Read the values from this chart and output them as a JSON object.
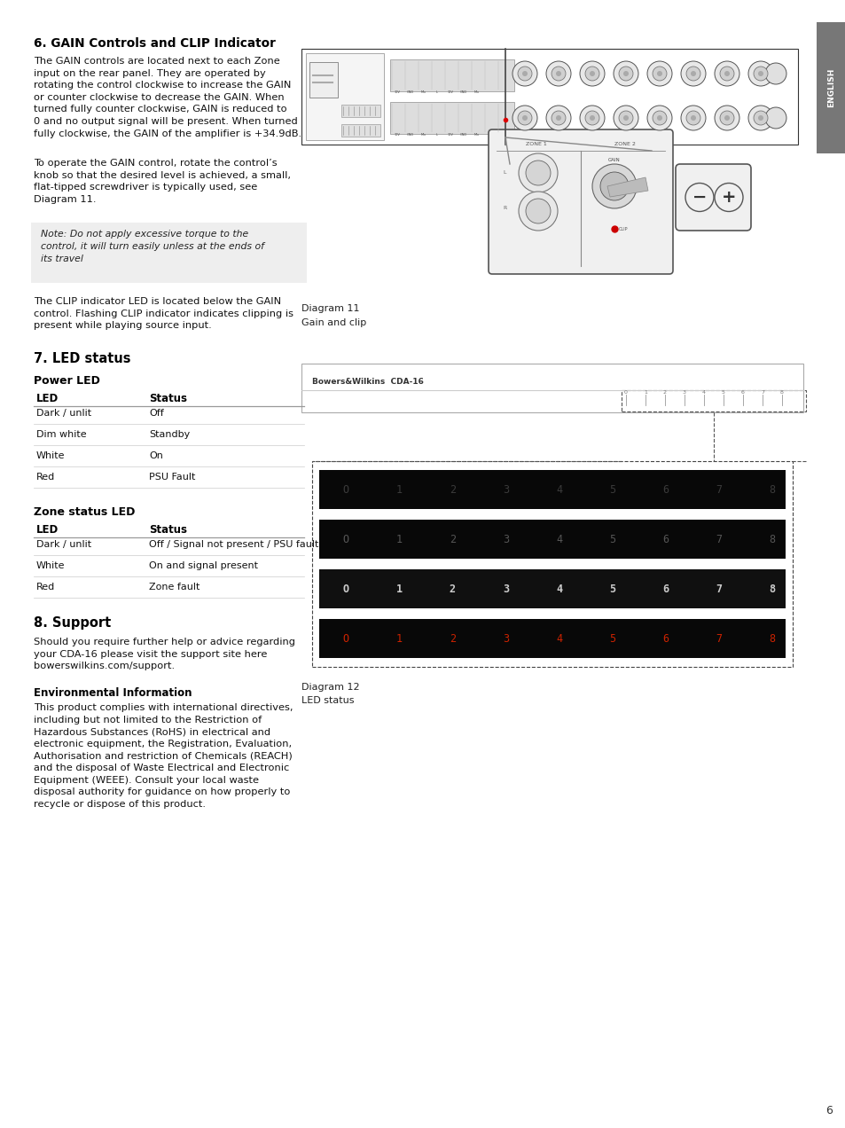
{
  "bg_color": "#ffffff",
  "sidebar_color": "#777777",
  "sidebar_text": "ENGLISH",
  "page_number": "6",
  "section6_title": "6. GAIN Controls and CLIP Indicator",
  "section6_body1": "The GAIN controls are located next to each Zone\ninput on the rear panel. They are operated by\nrotating the control clockwise to increase the GAIN\nor counter clockwise to decrease the GAIN. When\nturned fully counter clockwise, GAIN is reduced to\n0 and no output signal will be present. When turned\nfully clockwise, the GAIN of the amplifier is +34.9dB.",
  "section6_body2": "To operate the GAIN control, rotate the control’s\nknob so that the desired level is achieved, a small,\nflat-tipped screwdriver is typically used, see\nDiagram 11.",
  "note_text": "Note: Do not apply excessive torque to the\ncontrol, it will turn easily unless at the ends of\nits travel",
  "note_bg": "#eeeeee",
  "section6_body3": "The CLIP indicator LED is located below the GAIN\ncontrol. Flashing CLIP indicator indicates clipping is\npresent while playing source input.",
  "diagram11_label": "Diagram 11",
  "diagram11_caption": "Gain and clip",
  "section7_title": "7. LED status",
  "power_led_title": "Power LED",
  "power_led_headers": [
    "LED",
    "Status"
  ],
  "power_led_rows": [
    [
      "Dark / unlit",
      "Off"
    ],
    [
      "Dim white",
      "Standby"
    ],
    [
      "White",
      "On"
    ],
    [
      "Red",
      "PSU Fault"
    ]
  ],
  "zone_led_title": "Zone status LED",
  "zone_led_headers": [
    "LED",
    "Status"
  ],
  "zone_led_rows": [
    [
      "Dark / unlit",
      "Off / Signal not present / PSU fault"
    ],
    [
      "White",
      "On and signal present"
    ],
    [
      "Red",
      "Zone fault"
    ]
  ],
  "diagram12_label": "Diagram 12",
  "diagram12_caption": "LED status",
  "section8_title": "8. Support",
  "section8_body": "Should you require further help or advice regarding\nyour CDA-16 please visit the support site here\nbowerswilkins.com/support.",
  "env_title": "Environmental Information",
  "env_body": "This product complies with international directives,\nincluding but not limited to the Restriction of\nHazardous Substances (RoHS) in electrical and\nelectronic equipment, the Registration, Evaluation,\nAuthorisation and restriction of Chemicals (REACH)\nand the disposal of Waste Electrical and Electronic\nEquipment (WEEE). Consult your local waste\ndisposal authority for guidance on how properly to\nrecycle or dispose of this product.",
  "bw_logo_text": "Bowers&Wilkins  CDA-16",
  "led_row_configs": [
    {
      "bg": "#080808",
      "text_color": "#3a3a3a"
    },
    {
      "bg": "#080808",
      "text_color": "#555555"
    },
    {
      "bg": "#101010",
      "text_color": "#cccccc"
    },
    {
      "bg": "#080808",
      "text_color": "#cc2200"
    }
  ],
  "led_numbers": [
    "O",
    "1",
    "2",
    "3",
    "4",
    "5",
    "6",
    "7",
    "8"
  ]
}
